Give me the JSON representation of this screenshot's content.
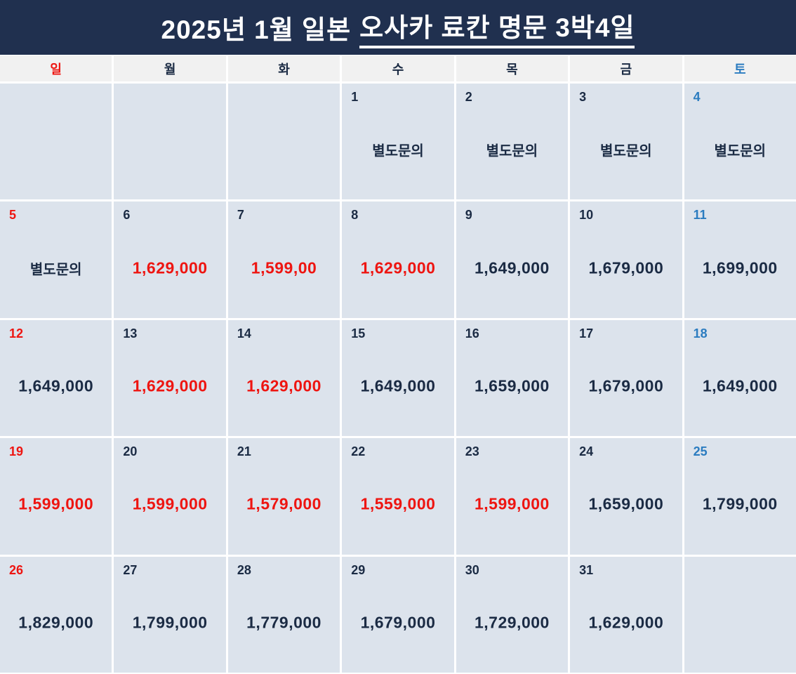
{
  "title": {
    "prefix": "2025년 1월 일본",
    "highlight": "오사카 료칸 명문 3박4일"
  },
  "inquiry_label": "별도문의",
  "colors": {
    "header_bg": "#20304f",
    "navy": "#1b2b44",
    "red": "#ee1511",
    "sat_blue": "#2b7cc0",
    "cell_bg": "#dce3ec",
    "weekday_row_bg": "#f1f1f1"
  },
  "weekday_header": [
    {
      "label": "일",
      "type": "sun"
    },
    {
      "label": "월",
      "type": "normal"
    },
    {
      "label": "화",
      "type": "normal"
    },
    {
      "label": "수",
      "type": "normal"
    },
    {
      "label": "목",
      "type": "normal"
    },
    {
      "label": "금",
      "type": "normal"
    },
    {
      "label": "토",
      "type": "sat"
    }
  ],
  "cells": [
    {
      "day": "",
      "day_type": "none",
      "value": "",
      "value_type": ""
    },
    {
      "day": "",
      "day_type": "none",
      "value": "",
      "value_type": ""
    },
    {
      "day": "",
      "day_type": "none",
      "value": "",
      "value_type": ""
    },
    {
      "day": "1",
      "day_type": "normal",
      "value": "별도문의",
      "value_type": "dark"
    },
    {
      "day": "2",
      "day_type": "normal",
      "value": "별도문의",
      "value_type": "dark"
    },
    {
      "day": "3",
      "day_type": "normal",
      "value": "별도문의",
      "value_type": "dark"
    },
    {
      "day": "4",
      "day_type": "sat",
      "value": "별도문의",
      "value_type": "dark"
    },
    {
      "day": "5",
      "day_type": "sun",
      "value": "별도문의",
      "value_type": "dark"
    },
    {
      "day": "6",
      "day_type": "normal",
      "value": "1,629,000",
      "value_type": "red"
    },
    {
      "day": "7",
      "day_type": "normal",
      "value": "1,599,00",
      "value_type": "red"
    },
    {
      "day": "8",
      "day_type": "normal",
      "value": "1,629,000",
      "value_type": "red"
    },
    {
      "day": "9",
      "day_type": "normal",
      "value": "1,649,000",
      "value_type": "dark"
    },
    {
      "day": "10",
      "day_type": "normal",
      "value": "1,679,000",
      "value_type": "dark"
    },
    {
      "day": "11",
      "day_type": "sat",
      "value": "1,699,000",
      "value_type": "dark"
    },
    {
      "day": "12",
      "day_type": "sun",
      "value": "1,649,000",
      "value_type": "dark"
    },
    {
      "day": "13",
      "day_type": "normal",
      "value": "1,629,000",
      "value_type": "red"
    },
    {
      "day": "14",
      "day_type": "normal",
      "value": "1,629,000",
      "value_type": "red"
    },
    {
      "day": "15",
      "day_type": "normal",
      "value": "1,649,000",
      "value_type": "dark"
    },
    {
      "day": "16",
      "day_type": "normal",
      "value": "1,659,000",
      "value_type": "dark"
    },
    {
      "day": "17",
      "day_type": "normal",
      "value": "1,679,000",
      "value_type": "dark"
    },
    {
      "day": "18",
      "day_type": "sat",
      "value": "1,649,000",
      "value_type": "dark"
    },
    {
      "day": "19",
      "day_type": "sun",
      "value": "1,599,000",
      "value_type": "red"
    },
    {
      "day": "20",
      "day_type": "normal",
      "value": "1,599,000",
      "value_type": "red"
    },
    {
      "day": "21",
      "day_type": "normal",
      "value": "1,579,000",
      "value_type": "red"
    },
    {
      "day": "22",
      "day_type": "normal",
      "value": "1,559,000",
      "value_type": "red"
    },
    {
      "day": "23",
      "day_type": "normal",
      "value": "1,599,000",
      "value_type": "red"
    },
    {
      "day": "24",
      "day_type": "normal",
      "value": "1,659,000",
      "value_type": "dark"
    },
    {
      "day": "25",
      "day_type": "sat",
      "value": "1,799,000",
      "value_type": "dark"
    },
    {
      "day": "26",
      "day_type": "sun",
      "value": "1,829,000",
      "value_type": "dark"
    },
    {
      "day": "27",
      "day_type": "normal",
      "value": "1,799,000",
      "value_type": "dark"
    },
    {
      "day": "28",
      "day_type": "normal",
      "value": "1,779,000",
      "value_type": "dark"
    },
    {
      "day": "29",
      "day_type": "normal",
      "value": "1,679,000",
      "value_type": "dark"
    },
    {
      "day": "30",
      "day_type": "normal",
      "value": "1,729,000",
      "value_type": "dark"
    },
    {
      "day": "31",
      "day_type": "normal",
      "value": "1,629,000",
      "value_type": "dark"
    },
    {
      "day": "",
      "day_type": "none",
      "value": "",
      "value_type": ""
    }
  ]
}
